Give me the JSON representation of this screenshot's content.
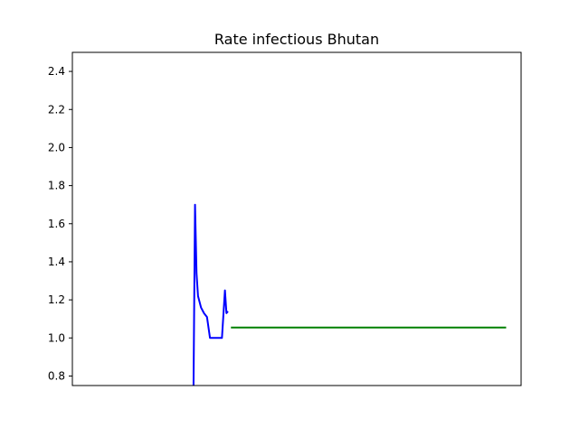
{
  "chart_data": {
    "type": "line",
    "title": "Rate infectious Bhutan",
    "xlabel": "",
    "ylabel": "",
    "ylim": [
      0.75,
      2.5
    ],
    "xlim": [
      0,
      150
    ],
    "x_ticks_visible": false,
    "y_ticks": [
      {
        "value": 0.8,
        "label": "0.8"
      },
      {
        "value": 1.0,
        "label": "1.0"
      },
      {
        "value": 1.2,
        "label": "1.2"
      },
      {
        "value": 1.4,
        "label": "1.4"
      },
      {
        "value": 1.6,
        "label": "1.6"
      },
      {
        "value": 1.8,
        "label": "1.8"
      },
      {
        "value": 2.0,
        "label": "2.0"
      },
      {
        "value": 2.2,
        "label": "2.2"
      },
      {
        "value": 2.4,
        "label": "2.4"
      }
    ],
    "grid": false,
    "legend": "none",
    "series": [
      {
        "color": "#0000ff",
        "x": [
          40.5,
          41.0,
          41.5,
          42.0,
          43.0,
          44.0,
          45.0,
          46.0,
          47.0,
          48.0,
          49.0,
          50.0,
          51.0,
          51.5,
          52.0
        ],
        "y": [
          0.75,
          1.7,
          1.34,
          1.22,
          1.16,
          1.13,
          1.11,
          1.0,
          1.0,
          1.0,
          1.0,
          1.0,
          1.25,
          1.13,
          1.14
        ]
      },
      {
        "color": "#008000",
        "x": [
          53,
          145
        ],
        "y": [
          1.055,
          1.055
        ]
      }
    ]
  }
}
